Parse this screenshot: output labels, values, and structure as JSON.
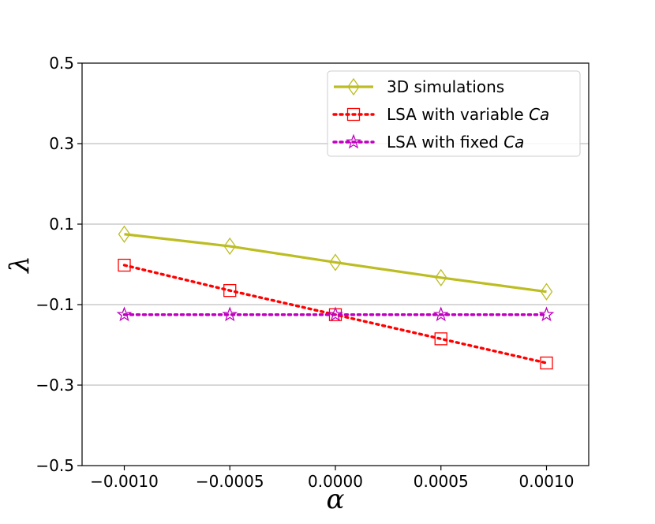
{
  "chart_data": {
    "type": "line",
    "xlabel": "α",
    "ylabel": "λ",
    "xlim": [
      -0.0012,
      0.0012
    ],
    "ylim": [
      -0.5,
      0.5
    ],
    "x_ticks": [
      -0.001,
      -0.0005,
      0.0,
      0.0005,
      0.001
    ],
    "x_tick_labels": [
      "−0.0010",
      "−0.0005",
      "0.0000",
      "0.0005",
      "0.0010"
    ],
    "y_ticks": [
      -0.5,
      -0.3,
      -0.1,
      0.1,
      0.3,
      0.5
    ],
    "y_tick_labels": [
      "−0.5",
      "−0.3",
      "−0.1",
      "0.1",
      "0.3",
      "0.5"
    ],
    "grid": "horizontal",
    "legend_position": "top-right",
    "x": [
      -0.001,
      -0.0005,
      0.0,
      0.0005,
      0.001
    ],
    "series": [
      {
        "name": "3D simulations",
        "name_prefix": "3D simulations",
        "name_italic": "",
        "values": [
          0.075,
          0.045,
          0.005,
          -0.033,
          -0.068
        ],
        "color": "#bcbd22",
        "line": "solid",
        "marker": "diamond"
      },
      {
        "name": "LSA with variable Ca",
        "name_prefix": "LSA with variable ",
        "name_italic": "Ca",
        "values": [
          -0.002,
          -0.065,
          -0.125,
          -0.185,
          -0.245
        ],
        "color": "#ff0000",
        "line": "dotted",
        "marker": "square"
      },
      {
        "name": "LSA with fixed Ca",
        "name_prefix": "LSA with fixed ",
        "name_italic": "Ca",
        "values": [
          -0.125,
          -0.125,
          -0.125,
          -0.125,
          -0.125
        ],
        "color": "#bf00bf",
        "line": "dotted",
        "marker": "star"
      }
    ]
  }
}
